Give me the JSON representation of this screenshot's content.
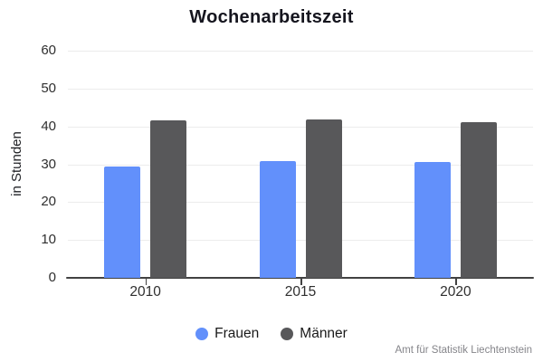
{
  "chart_data": {
    "type": "bar",
    "title": "Wochenarbeitszeit",
    "xlabel": "",
    "ylabel": "in Stunden",
    "categories": [
      "2010",
      "2015",
      "2020"
    ],
    "series": [
      {
        "name": "Frauen",
        "color": "#6290fb",
        "values": [
          29.5,
          30.9,
          30.6
        ]
      },
      {
        "name": "Männer",
        "color": "#58585a",
        "values": [
          41.5,
          41.9,
          41.0
        ]
      }
    ],
    "ylim": [
      0,
      60
    ],
    "yticks": [
      0,
      10,
      20,
      30,
      40,
      50,
      60
    ],
    "grid": true,
    "legend_position": "bottom",
    "source": "Amt für Statistik Liechtenstein"
  }
}
